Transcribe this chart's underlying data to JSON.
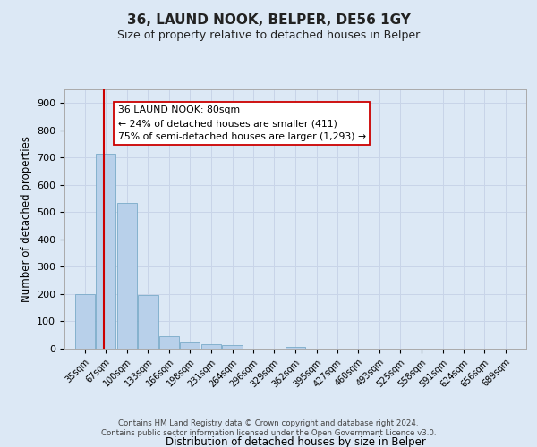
{
  "title": "36, LAUND NOOK, BELPER, DE56 1GY",
  "subtitle": "Size of property relative to detached houses in Belper",
  "xlabel": "Distribution of detached houses by size in Belper",
  "ylabel": "Number of detached properties",
  "bar_labels": [
    "35sqm",
    "67sqm",
    "100sqm",
    "133sqm",
    "166sqm",
    "198sqm",
    "231sqm",
    "264sqm",
    "296sqm",
    "329sqm",
    "362sqm",
    "395sqm",
    "427sqm",
    "460sqm",
    "493sqm",
    "525sqm",
    "558sqm",
    "591sqm",
    "624sqm",
    "656sqm",
    "689sqm"
  ],
  "bar_values": [
    200,
    715,
    535,
    195,
    45,
    22,
    15,
    12,
    0,
    0,
    8,
    0,
    0,
    0,
    0,
    0,
    0,
    0,
    0,
    0,
    0
  ],
  "bar_color": "#b8d0ea",
  "bar_edgecolor": "#7aaac8",
  "property_line_color": "#cc0000",
  "ylim": [
    0,
    950
  ],
  "yticks": [
    0,
    100,
    200,
    300,
    400,
    500,
    600,
    700,
    800,
    900
  ],
  "annotation_title": "36 LAUND NOOK: 80sqm",
  "annotation_line1": "← 24% of detached houses are smaller (411)",
  "annotation_line2": "75% of semi-detached houses are larger (1,293) →",
  "annotation_box_facecolor": "#ffffff",
  "annotation_box_edgecolor": "#cc0000",
  "grid_color": "#c8d4e8",
  "background_color": "#dce8f5",
  "footer1": "Contains HM Land Registry data © Crown copyright and database right 2024.",
  "footer2": "Contains public sector information licensed under the Open Government Licence v3.0.",
  "bin_starts": [
    35,
    67,
    100,
    133,
    166,
    198,
    231,
    264,
    296,
    329,
    362,
    395,
    427,
    460,
    493,
    525,
    558,
    591,
    624,
    656,
    689
  ],
  "bin_width": 32,
  "prop_sqm": 80
}
